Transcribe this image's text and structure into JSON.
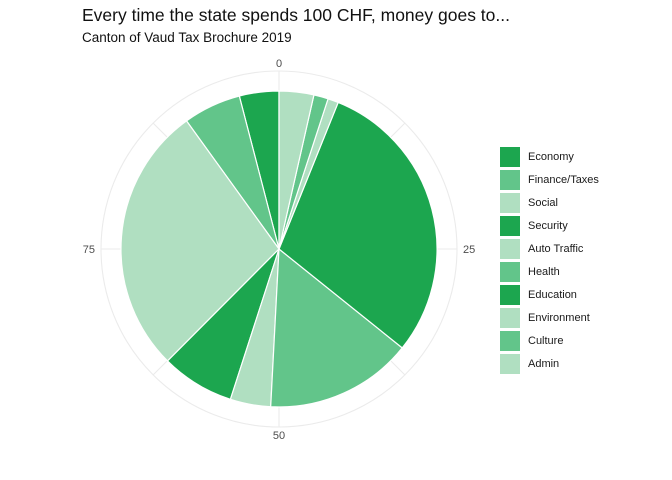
{
  "title": "Every time the state spends 100 CHF, money goes to...",
  "subtitle": "Canton of Vaud Tax Brochure 2019",
  "chart_data": {
    "type": "pie",
    "title": "Every time the state spends 100 CHF, money goes to...",
    "subtitle": "Canton of Vaud Tax Brochure 2019",
    "slices": [
      {
        "label": "Economy",
        "value": 4.1,
        "color": "#1ca64f"
      },
      {
        "label": "Finance/Taxes",
        "value": 6.0,
        "color": "#62c58a"
      },
      {
        "label": "Social",
        "value": 28.0,
        "color": "#b0dfc1"
      },
      {
        "label": "Security",
        "value": 7.6,
        "color": "#1ca64f"
      },
      {
        "label": "Auto Traffic",
        "value": 4.2,
        "color": "#b0dfc1"
      },
      {
        "label": "Health",
        "value": 15.3,
        "color": "#62c58a"
      },
      {
        "label": "Education",
        "value": 30.1,
        "color": "#1ca64f"
      },
      {
        "label": "Environment",
        "value": 1.1,
        "color": "#b0dfc1"
      },
      {
        "label": "Culture",
        "value": 1.5,
        "color": "#62c58a"
      },
      {
        "label": "Admin",
        "value": 3.6,
        "color": "#b0dfc1"
      }
    ],
    "axis_ticks": [
      "0",
      "25",
      "50",
      "75"
    ],
    "direction": "counterclockwise from top",
    "grid": true,
    "legend_position": "right"
  }
}
